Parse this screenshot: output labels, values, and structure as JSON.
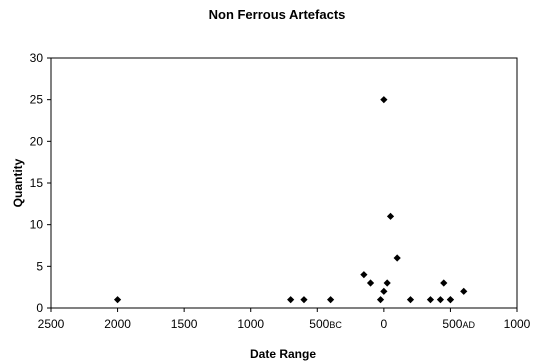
{
  "chart_data": {
    "type": "scatter",
    "title": "Non Ferrous Artefacts",
    "xlabel": "Date Range",
    "ylabel": "Quantity",
    "xlim": [
      -2500,
      1000
    ],
    "ylim": [
      0,
      30
    ],
    "x_reversed": true,
    "grid": false,
    "legend": "none",
    "marker_color": "#000000",
    "x_ticks": [
      {
        "value": -2500,
        "label": "2500",
        "suffix": ""
      },
      {
        "value": -2000,
        "label": "2000",
        "suffix": ""
      },
      {
        "value": -1500,
        "label": "1500",
        "suffix": ""
      },
      {
        "value": -1000,
        "label": "1000",
        "suffix": ""
      },
      {
        "value": -500,
        "label": "500",
        "suffix": "BC"
      },
      {
        "value": 0,
        "label": "0",
        "suffix": ""
      },
      {
        "value": 500,
        "label": "500",
        "suffix": "AD"
      },
      {
        "value": 1000,
        "label": "1000",
        "suffix": ""
      }
    ],
    "y_ticks": [
      0,
      5,
      10,
      15,
      20,
      25,
      30
    ],
    "points": [
      {
        "x": -2000,
        "y": 1
      },
      {
        "x": -700,
        "y": 1
      },
      {
        "x": -600,
        "y": 1
      },
      {
        "x": -400,
        "y": 1
      },
      {
        "x": -150,
        "y": 4
      },
      {
        "x": -100,
        "y": 3
      },
      {
        "x": -25,
        "y": 1
      },
      {
        "x": 0,
        "y": 2
      },
      {
        "x": 0,
        "y": 25
      },
      {
        "x": 25,
        "y": 3
      },
      {
        "x": 50,
        "y": 11
      },
      {
        "x": 100,
        "y": 6
      },
      {
        "x": 200,
        "y": 1
      },
      {
        "x": 350,
        "y": 1
      },
      {
        "x": 425,
        "y": 1
      },
      {
        "x": 450,
        "y": 3
      },
      {
        "x": 500,
        "y": 1
      },
      {
        "x": 500,
        "y": 1
      },
      {
        "x": 600,
        "y": 2
      }
    ]
  }
}
